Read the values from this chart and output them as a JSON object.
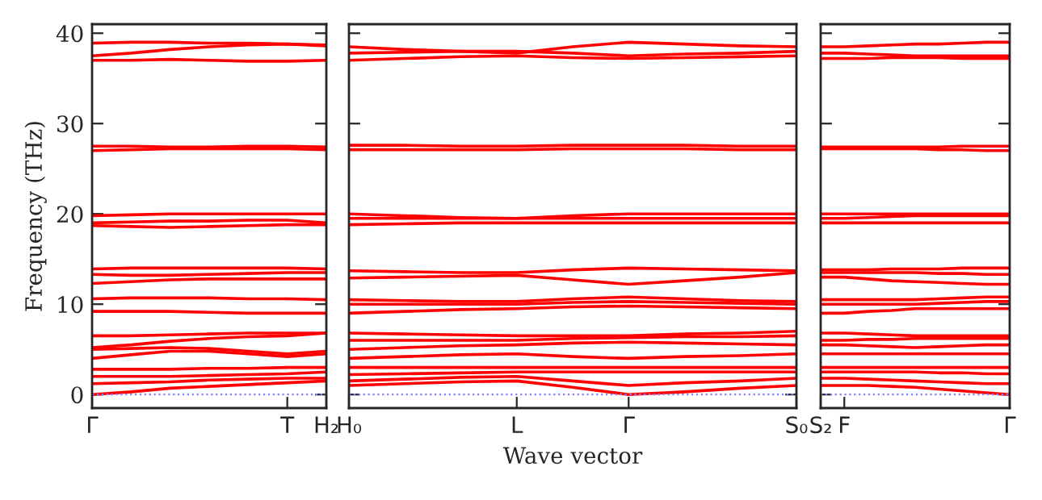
{
  "chart_data": [
    {
      "type": "line",
      "ylabel": "Frequency (THz)",
      "ylim": [
        -1.5,
        41
      ],
      "yticks": [
        0,
        10,
        20,
        30,
        40
      ],
      "categories": [
        "Γ",
        null,
        null,
        null,
        null,
        "T",
        "H₂"
      ],
      "grid": false,
      "legend": false,
      "marker": "none",
      "line_style": "solid",
      "ref_lines": [
        {
          "axis": "y",
          "value": 0,
          "label": null,
          "color": "#8080ff",
          "line_style": "dotted"
        }
      ],
      "series": [
        {
          "color": "#ff0000",
          "values": [
            0,
            0.3,
            0.7,
            0.9,
            1.1,
            1.3,
            1.5
          ]
        },
        {
          "color": "#ff0000",
          "values": [
            1.2,
            1.3,
            1.4,
            1.6,
            1.7,
            1.8,
            1.8
          ]
        },
        {
          "color": "#ff0000",
          "values": [
            2,
            2,
            2,
            2.1,
            2.2,
            2.3,
            2.5
          ]
        },
        {
          "color": "#ff0000",
          "values": [
            2.8,
            2.8,
            2.8,
            2.9,
            2.9,
            3,
            3
          ]
        },
        {
          "color": "#ff0000",
          "values": [
            4,
            4.4,
            4.8,
            4.8,
            4.5,
            4.2,
            4.5
          ]
        },
        {
          "color": "#ff0000",
          "values": [
            5,
            5.1,
            5.2,
            5.1,
            4.8,
            4.5,
            4.8
          ]
        },
        {
          "color": "#ff0000",
          "values": [
            5.2,
            5.5,
            5.9,
            6.2,
            6.4,
            6.5,
            6.8
          ]
        },
        {
          "color": "#ff0000",
          "values": [
            6.5,
            6.5,
            6.6,
            6.7,
            6.8,
            6.8,
            6.8
          ]
        },
        {
          "color": "#ff0000",
          "values": [
            9.2,
            9.2,
            9.2,
            9.1,
            9,
            9,
            9
          ]
        },
        {
          "color": "#ff0000",
          "values": [
            10.6,
            10.7,
            10.7,
            10.7,
            10.6,
            10.6,
            10.5
          ]
        },
        {
          "color": "#ff0000",
          "values": [
            12.3,
            12.5,
            12.7,
            12.8,
            12.8,
            12.8,
            12.8
          ]
        },
        {
          "color": "#ff0000",
          "values": [
            13.3,
            13.2,
            13.2,
            13.3,
            13.4,
            13.5,
            13.5
          ]
        },
        {
          "color": "#ff0000",
          "values": [
            13.9,
            14,
            14,
            14,
            14,
            14,
            13.9
          ]
        },
        {
          "color": "#ff0000",
          "values": [
            18.7,
            18.6,
            18.5,
            18.6,
            18.7,
            18.8,
            18.8
          ]
        },
        {
          "color": "#ff0000",
          "values": [
            19,
            19.1,
            19.2,
            19.2,
            19.3,
            19.3,
            19
          ]
        },
        {
          "color": "#ff0000",
          "values": [
            19.8,
            19.9,
            20,
            20,
            20,
            20,
            20
          ]
        },
        {
          "color": "#ff0000",
          "values": [
            27,
            27.1,
            27.2,
            27.2,
            27.2,
            27.2,
            27.1
          ]
        },
        {
          "color": "#ff0000",
          "values": [
            27.5,
            27.5,
            27.4,
            27.4,
            27.5,
            27.5,
            27.4
          ]
        },
        {
          "color": "#ff0000",
          "values": [
            37,
            37,
            37.1,
            37,
            36.9,
            36.9,
            37
          ]
        },
        {
          "color": "#ff0000",
          "values": [
            37.5,
            37.8,
            38.2,
            38.5,
            38.7,
            38.8,
            38.6
          ]
        },
        {
          "color": "#ff0000",
          "values": [
            38.9,
            39,
            39,
            38.9,
            38.9,
            38.8,
            38.7
          ]
        }
      ]
    },
    {
      "type": "line",
      "xlabel": "Wave vector",
      "ylim": [
        -1.5,
        41
      ],
      "yticks": [
        0,
        10,
        20,
        30,
        40
      ],
      "tick_labels": "x",
      "categories": [
        "H₀",
        null,
        null,
        "L",
        null,
        "Γ",
        null,
        null,
        "S₀"
      ],
      "grid": false,
      "legend": false,
      "marker": "none",
      "line_style": "solid",
      "ref_lines": [
        {
          "axis": "y",
          "value": 0,
          "label": null,
          "color": "#8080ff",
          "line_style": "dotted"
        }
      ],
      "series": [
        {
          "color": "#ff0000",
          "values": [
            1,
            1.2,
            1.4,
            1.5,
            0.8,
            0,
            0.3,
            0.7,
            1
          ]
        },
        {
          "color": "#ff0000",
          "values": [
            1.5,
            1.7,
            1.9,
            2,
            1.5,
            1,
            1.3,
            1.5,
            1.8
          ]
        },
        {
          "color": "#ff0000",
          "values": [
            2.2,
            2.3,
            2.4,
            2.5,
            2.5,
            2.5,
            2.5,
            2.5,
            2.5
          ]
        },
        {
          "color": "#ff0000",
          "values": [
            3,
            3,
            3,
            3,
            3,
            3,
            3,
            3,
            3
          ]
        },
        {
          "color": "#ff0000",
          "values": [
            4,
            4.2,
            4.4,
            4.5,
            4.2,
            4,
            4.2,
            4.3,
            4.5
          ]
        },
        {
          "color": "#ff0000",
          "values": [
            5,
            5.2,
            5.4,
            5.5,
            5.7,
            5.8,
            5.7,
            5.6,
            5.5
          ]
        },
        {
          "color": "#ff0000",
          "values": [
            6,
            6,
            6,
            6,
            6.2,
            6.3,
            6.4,
            6.4,
            6.5
          ]
        },
        {
          "color": "#ff0000",
          "values": [
            6.8,
            6.7,
            6.6,
            6.5,
            6.5,
            6.5,
            6.7,
            6.8,
            7
          ]
        },
        {
          "color": "#ff0000",
          "values": [
            9,
            9.2,
            9.4,
            9.5,
            9.7,
            9.8,
            9.7,
            9.6,
            9.5
          ]
        },
        {
          "color": "#ff0000",
          "values": [
            10,
            10,
            10,
            10,
            10.2,
            10.3,
            10.2,
            10.1,
            10
          ]
        },
        {
          "color": "#ff0000",
          "values": [
            10.5,
            10.4,
            10.3,
            10.3,
            10.6,
            10.8,
            10.6,
            10.4,
            10.3
          ]
        },
        {
          "color": "#ff0000",
          "values": [
            12.9,
            13,
            13.1,
            13.2,
            12.7,
            12.2,
            12.6,
            13,
            13.5
          ]
        },
        {
          "color": "#ff0000",
          "values": [
            13.7,
            13.6,
            13.5,
            13.5,
            13.8,
            14,
            13.9,
            13.8,
            13.7
          ]
        },
        {
          "color": "#ff0000",
          "values": [
            18.8,
            18.9,
            19,
            19,
            19,
            19,
            19,
            19,
            19
          ]
        },
        {
          "color": "#ff0000",
          "values": [
            19.5,
            19.5,
            19.5,
            19.5,
            19.5,
            19.5,
            19.5,
            19.5,
            19.5
          ]
        },
        {
          "color": "#ff0000",
          "values": [
            20,
            19.8,
            19.6,
            19.5,
            19.8,
            20,
            20,
            20,
            20
          ]
        },
        {
          "color": "#ff0000",
          "values": [
            27.1,
            27.1,
            27.1,
            27.1,
            27.2,
            27.2,
            27.2,
            27.1,
            27.1
          ]
        },
        {
          "color": "#ff0000",
          "values": [
            27.6,
            27.6,
            27.5,
            27.5,
            27.6,
            27.6,
            27.6,
            27.5,
            27.5
          ]
        },
        {
          "color": "#ff0000",
          "values": [
            37,
            37.2,
            37.4,
            37.5,
            37.3,
            37.2,
            37.3,
            37.4,
            37.5
          ]
        },
        {
          "color": "#ff0000",
          "values": [
            37.8,
            37.9,
            38,
            38,
            37.8,
            37.5,
            37.7,
            37.8,
            38
          ]
        },
        {
          "color": "#ff0000",
          "values": [
            38.5,
            38.2,
            38,
            37.8,
            38.5,
            39,
            38.8,
            38.6,
            38.5
          ]
        }
      ]
    },
    {
      "type": "line",
      "ylim": [
        -1.5,
        41
      ],
      "yticks": [
        0,
        10,
        20,
        30,
        40
      ],
      "tick_labels": "x",
      "categories": [
        "S₂",
        "F",
        null,
        null,
        null,
        null,
        null,
        null,
        "Γ"
      ],
      "grid": false,
      "legend": false,
      "marker": "none",
      "line_style": "solid",
      "ref_lines": [
        {
          "axis": "y",
          "value": 0,
          "label": null,
          "color": "#8080ff",
          "line_style": "dotted"
        }
      ],
      "series": [
        {
          "color": "#ff0000",
          "values": [
            1,
            1,
            1,
            0.9,
            0.8,
            0.6,
            0.4,
            0.2,
            0
          ]
        },
        {
          "color": "#ff0000",
          "values": [
            1.8,
            1.8,
            1.7,
            1.6,
            1.5,
            1.4,
            1.3,
            1.2,
            1.2
          ]
        },
        {
          "color": "#ff0000",
          "values": [
            2.5,
            2.5,
            2.5,
            2.5,
            2.5,
            2.4,
            2.4,
            2.3,
            2.3
          ]
        },
        {
          "color": "#ff0000",
          "values": [
            3,
            3,
            3,
            3,
            3,
            3,
            3,
            3,
            3
          ]
        },
        {
          "color": "#ff0000",
          "values": [
            4.5,
            4.5,
            4.5,
            4.5,
            4.5,
            4.5,
            4.5,
            4.5,
            4.5
          ]
        },
        {
          "color": "#ff0000",
          "values": [
            5.5,
            5.5,
            5.4,
            5.3,
            5.2,
            5.3,
            5.4,
            5.5,
            5.5
          ]
        },
        {
          "color": "#ff0000",
          "values": [
            6,
            6,
            6.1,
            6.1,
            6.2,
            6.2,
            6.2,
            6.2,
            6.2
          ]
        },
        {
          "color": "#ff0000",
          "values": [
            6.8,
            6.8,
            6.7,
            6.6,
            6.5,
            6.5,
            6.5,
            6.5,
            6.5
          ]
        },
        {
          "color": "#ff0000",
          "values": [
            9,
            9,
            9.2,
            9.3,
            9.5,
            9.5,
            9.5,
            9.5,
            9.5
          ]
        },
        {
          "color": "#ff0000",
          "values": [
            10,
            10,
            10,
            10,
            10,
            10.1,
            10.2,
            10.3,
            10.3
          ]
        },
        {
          "color": "#ff0000",
          "values": [
            10.5,
            10.5,
            10.5,
            10.5,
            10.5,
            10.6,
            10.7,
            10.8,
            10.8
          ]
        },
        {
          "color": "#ff0000",
          "values": [
            13,
            13,
            12.8,
            12.6,
            12.5,
            12.4,
            12.3,
            12.2,
            12.2
          ]
        },
        {
          "color": "#ff0000",
          "values": [
            13.5,
            13.5,
            13.5,
            13.5,
            13.5,
            13.4,
            13.4,
            13.3,
            13.3
          ]
        },
        {
          "color": "#ff0000",
          "values": [
            13.8,
            13.8,
            13.8,
            13.9,
            13.9,
            13.9,
            14,
            14,
            14
          ]
        },
        {
          "color": "#ff0000",
          "values": [
            19,
            19,
            19,
            19,
            19,
            19,
            19,
            19,
            19
          ]
        },
        {
          "color": "#ff0000",
          "values": [
            19.5,
            19.5,
            19.6,
            19.7,
            19.8,
            19.8,
            19.8,
            19.8,
            19.8
          ]
        },
        {
          "color": "#ff0000",
          "values": [
            20,
            20,
            20,
            20,
            20,
            20,
            20,
            20,
            20
          ]
        },
        {
          "color": "#ff0000",
          "values": [
            27.2,
            27.2,
            27.2,
            27.2,
            27.2,
            27.1,
            27.1,
            27,
            27
          ]
        },
        {
          "color": "#ff0000",
          "values": [
            27.4,
            27.4,
            27.4,
            27.4,
            27.4,
            27.4,
            27.5,
            27.5,
            27.5
          ]
        },
        {
          "color": "#ff0000",
          "values": [
            37.2,
            37.2,
            37.2,
            37.3,
            37.3,
            37.3,
            37.2,
            37.2,
            37.2
          ]
        },
        {
          "color": "#ff0000",
          "values": [
            37.8,
            37.8,
            37.7,
            37.6,
            37.5,
            37.5,
            37.5,
            37.5,
            37.5
          ]
        },
        {
          "color": "#ff0000",
          "values": [
            38.5,
            38.5,
            38.6,
            38.7,
            38.8,
            38.8,
            38.9,
            39,
            39
          ]
        }
      ]
    }
  ]
}
